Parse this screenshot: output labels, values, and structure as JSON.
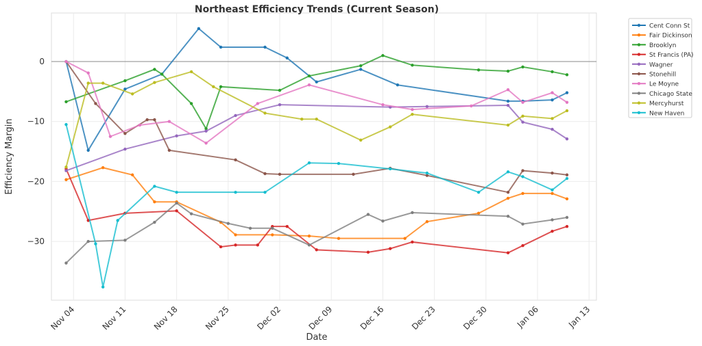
{
  "chart_data": {
    "type": "line",
    "title": "Northeast Efficiency Trends (Current Season)",
    "x_label": "Date",
    "y_label": "Efficiency Margin",
    "xlim": [
      "Nov 01",
      "Jan 14"
    ],
    "xticks": [
      "Nov 04",
      "Nov 11",
      "Nov 18",
      "Nov 25",
      "Dec 02",
      "Dec 09",
      "Dec 16",
      "Dec 23",
      "Dec 30",
      "Jan 06",
      "Jan 13"
    ],
    "ylim": [
      -39.8,
      8.1
    ],
    "yticks": [
      {
        "value": -30,
        "label": "−30"
      },
      {
        "value": -20,
        "label": "−20"
      },
      {
        "value": -10,
        "label": "−10"
      },
      {
        "value": 0,
        "label": "0"
      }
    ],
    "grid": true,
    "legend": "outside upper right",
    "series": [
      {
        "name": "Cent Conn St",
        "color": "#1f77b4",
        "x": [
          "Nov 03",
          "Nov 06",
          "Nov 11",
          "Nov 16",
          "Nov 21",
          "Nov 24",
          "Nov 30",
          "Dec 03",
          "Dec 07",
          "Dec 13",
          "Dec 18",
          "Jan 02",
          "Jan 04",
          "Jan 08",
          "Jan 10"
        ],
        "values": [
          0,
          -14.8,
          -4.6,
          -2.1,
          5.5,
          2.4,
          2.4,
          0.6,
          -3.4,
          -1.3,
          -3.9,
          -6.6,
          -6.6,
          -6.4,
          -5.2
        ]
      },
      {
        "name": "Fair Dickinson",
        "color": "#ff7f0e",
        "x": [
          "Nov 03",
          "Nov 08",
          "Nov 12",
          "Nov 15",
          "Nov 18",
          "Nov 24",
          "Nov 26",
          "Dec 01",
          "Dec 06",
          "Dec 10",
          "Dec 19",
          "Dec 22",
          "Dec 29",
          "Jan 02",
          "Jan 04",
          "Jan 08",
          "Jan 10"
        ],
        "values": [
          -19.7,
          -17.7,
          -18.9,
          -23.4,
          -23.4,
          -26.8,
          -28.9,
          -28.9,
          -29.1,
          -29.5,
          -29.5,
          -26.7,
          -25.3,
          -22.8,
          -22,
          -22,
          -22.9
        ]
      },
      {
        "name": "Brooklyn",
        "color": "#2ca02c",
        "x": [
          "Nov 03",
          "Nov 11",
          "Nov 15",
          "Nov 16",
          "Nov 20",
          "Nov 22",
          "Nov 24",
          "Dec 02",
          "Dec 06",
          "Dec 13",
          "Dec 16",
          "Dec 20",
          "Dec 29",
          "Jan 02",
          "Jan 04",
          "Jan 08",
          "Jan 10"
        ],
        "values": [
          -6.7,
          -3.2,
          -1.3,
          -2.1,
          -7,
          -11.2,
          -4.2,
          -4.8,
          -2.4,
          -0.7,
          1,
          -0.6,
          -1.4,
          -1.6,
          -0.9,
          -1.7,
          -2.2
        ]
      },
      {
        "name": "St Francis (PA)",
        "color": "#d62728",
        "x": [
          "Nov 03",
          "Nov 06",
          "Nov 11",
          "Nov 18",
          "Nov 24",
          "Nov 26",
          "Nov 29",
          "Dec 01",
          "Dec 03",
          "Dec 07",
          "Dec 14",
          "Dec 17",
          "Dec 20",
          "Jan 02",
          "Jan 04",
          "Jan 08",
          "Jan 10"
        ],
        "values": [
          -17.9,
          -26.5,
          -25.3,
          -24.9,
          -30.9,
          -30.6,
          -30.6,
          -27.5,
          -27.5,
          -31.4,
          -31.8,
          -31.2,
          -30.1,
          -31.9,
          -30.7,
          -28.3,
          -27.5
        ]
      },
      {
        "name": "Wagner",
        "color": "#9467bd",
        "x": [
          "Nov 03",
          "Nov 11",
          "Nov 18",
          "Nov 22",
          "Nov 26",
          "Dec 02",
          "Dec 17",
          "Dec 22",
          "Jan 02",
          "Jan 04",
          "Jan 08",
          "Jan 10"
        ],
        "values": [
          -18.2,
          -14.6,
          -12.4,
          -11.6,
          -9,
          -7.2,
          -7.6,
          -7.5,
          -7.3,
          -10.1,
          -11.3,
          -12.9
        ]
      },
      {
        "name": "Stonehill",
        "color": "#8c564b",
        "x": [
          "Nov 03",
          "Nov 07",
          "Nov 11",
          "Nov 14",
          "Nov 15",
          "Nov 17",
          "Nov 26",
          "Nov 30",
          "Dec 02",
          "Dec 12",
          "Dec 17",
          "Dec 22",
          "Jan 02",
          "Jan 04",
          "Jan 08",
          "Jan 10"
        ],
        "values": [
          0,
          -7,
          -12,
          -9.7,
          -9.7,
          -14.8,
          -16.4,
          -18.7,
          -18.8,
          -18.8,
          -17.8,
          -19,
          -21.8,
          -18.2,
          -18.6,
          -18.9
        ]
      },
      {
        "name": "Le Moyne",
        "color": "#e377c2",
        "x": [
          "Nov 03",
          "Nov 06",
          "Nov 09",
          "Nov 13",
          "Nov 17",
          "Nov 22",
          "Nov 29",
          "Dec 06",
          "Dec 16",
          "Dec 20",
          "Dec 28",
          "Jan 02",
          "Jan 04",
          "Jan 08",
          "Jan 10"
        ],
        "values": [
          0,
          -1.9,
          -12.5,
          -10.6,
          -10,
          -13.6,
          -7,
          -3.9,
          -7.2,
          -8,
          -7.4,
          -4.7,
          -6.8,
          -5.2,
          -6.8
        ]
      },
      {
        "name": "Chicago State",
        "color": "#7f7f7f",
        "x": [
          "Nov 03",
          "Nov 06",
          "Nov 11",
          "Nov 15",
          "Nov 18",
          "Nov 20",
          "Nov 25",
          "Nov 28",
          "Dec 01",
          "Dec 06",
          "Dec 14",
          "Dec 16",
          "Dec 20",
          "Jan 02",
          "Jan 04",
          "Jan 08",
          "Jan 10"
        ],
        "values": [
          -33.6,
          -30,
          -29.8,
          -26.8,
          -23.6,
          -25.4,
          -27,
          -27.8,
          -27.8,
          -30.6,
          -25.5,
          -26.6,
          -25.2,
          -25.8,
          -27.1,
          -26.4,
          -26
        ]
      },
      {
        "name": "Mercyhurst",
        "color": "#bcbd22",
        "x": [
          "Nov 03",
          "Nov 06",
          "Nov 08",
          "Nov 12",
          "Nov 15",
          "Nov 20",
          "Nov 23",
          "Nov 30",
          "Dec 05",
          "Dec 07",
          "Dec 13",
          "Dec 17",
          "Dec 20",
          "Jan 02",
          "Jan 04",
          "Jan 08",
          "Jan 10"
        ],
        "values": [
          -17.6,
          -3.6,
          -3.6,
          -5.4,
          -3.5,
          -1.7,
          -4.2,
          -8.6,
          -9.6,
          -9.6,
          -13.1,
          -10.9,
          -8.8,
          -10.6,
          -9.1,
          -9.5,
          -8.2
        ]
      },
      {
        "name": "New Haven",
        "color": "#17becf",
        "x": [
          "Nov 03",
          "Nov 07",
          "Nov 08",
          "Nov 10",
          "Nov 15",
          "Nov 18",
          "Nov 26",
          "Nov 30",
          "Dec 06",
          "Dec 10",
          "Dec 17",
          "Dec 22",
          "Dec 29",
          "Jan 02",
          "Jan 04",
          "Jan 08",
          "Jan 10"
        ],
        "values": [
          -10.5,
          -30.4,
          -37.6,
          -26.5,
          -20.8,
          -21.8,
          -21.8,
          -21.8,
          -16.9,
          -17,
          -17.9,
          -18.6,
          -21.8,
          -18.4,
          -19.2,
          -21.4,
          -19.5
        ]
      }
    ]
  }
}
